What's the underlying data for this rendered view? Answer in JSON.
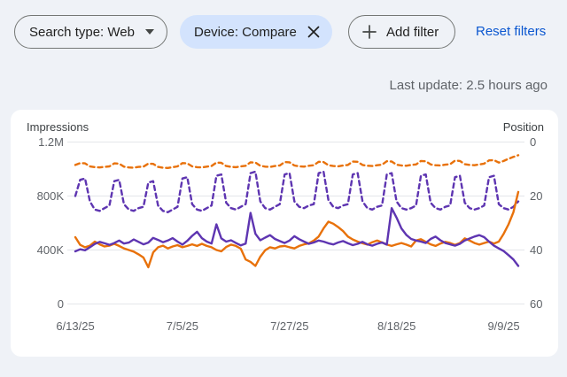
{
  "filter_bar": {
    "search_type": {
      "label": "Search type: Web"
    },
    "device_chip": {
      "label": "Device: Compare"
    },
    "add_filter": {
      "label": "Add filter"
    },
    "reset_filters": {
      "label": "Reset filters"
    }
  },
  "status": {
    "last_update": "Last update: 2.5 hours ago"
  },
  "chart_card": {
    "left_axis_title": "Impressions",
    "right_axis_title": "Position"
  },
  "colors": {
    "purple": "#5e35b1",
    "orange": "#e8710a",
    "gridline": "#e4e6ea",
    "tick_text": "#5f6368",
    "chip_bg": "#d3e3fd",
    "link_blue": "#0b57d0"
  },
  "chart_data": {
    "type": "line",
    "title": "Search performance: Impressions and Position, device comparison",
    "x_ticks": [
      "6/13/25",
      "7/5/25",
      "7/27/25",
      "8/18/25",
      "9/9/25"
    ],
    "x_tick_days": [
      0,
      22,
      44,
      66,
      88
    ],
    "days": 92,
    "left_axis": {
      "label": "Impressions",
      "ticks": [
        "1.2M",
        "800K",
        "400K",
        "0"
      ],
      "range_k": [
        0,
        1200
      ],
      "values_unit": "thousands"
    },
    "right_axis": {
      "label": "Position",
      "ticks": [
        "0",
        "20",
        "40",
        "60"
      ],
      "range": [
        0,
        60
      ],
      "inverted": true
    },
    "grid": true,
    "legend": "none",
    "series": [
      {
        "name": "position-orange-dashed",
        "axis": "right",
        "color": "#e8710a",
        "style": "dashed",
        "values": [
          8.5,
          7.8,
          7.9,
          9,
          9.3,
          9.4,
          9.2,
          9,
          7.9,
          8,
          9.1,
          9.4,
          9.5,
          9.2,
          9.1,
          8,
          8.1,
          9.2,
          9.5,
          9.6,
          9.3,
          9,
          7.8,
          7.9,
          9,
          9.3,
          9.4,
          9.1,
          8.9,
          7.6,
          7.7,
          8.9,
          9.2,
          9.3,
          9,
          8.8,
          7.5,
          7.6,
          8.8,
          9.1,
          9.2,
          8.9,
          8.7,
          7.4,
          7.5,
          8.7,
          9,
          9.1,
          8.8,
          8.6,
          7.3,
          7.4,
          8.6,
          8.9,
          9,
          8.7,
          8.5,
          7.2,
          7.3,
          8.5,
          8.8,
          8.9,
          8.6,
          8.4,
          7.1,
          7.2,
          8.4,
          8.7,
          8.8,
          8.5,
          8.3,
          7,
          7.1,
          8.3,
          8.6,
          8.7,
          8.4,
          8.2,
          6.9,
          7,
          8.2,
          8.5,
          8.6,
          8.3,
          8,
          6.8,
          6.7,
          7.6,
          7,
          6.2,
          5.5,
          4.9
        ]
      },
      {
        "name": "position-purple-dashed",
        "axis": "right",
        "color": "#5e35b1",
        "style": "dashed",
        "values": [
          20,
          14,
          13.5,
          22,
          25,
          25.5,
          24.5,
          23.5,
          14.5,
          14,
          23,
          25,
          25.5,
          24.5,
          24,
          15,
          14.5,
          23.5,
          25.5,
          26,
          25,
          24,
          13.5,
          13,
          23,
          25,
          25.5,
          24.5,
          23.5,
          12.5,
          12,
          22.5,
          24.5,
          25,
          24,
          23,
          11.5,
          11,
          22,
          24.5,
          25,
          24,
          23,
          12,
          11.5,
          22,
          24,
          24.5,
          23.5,
          23,
          11.5,
          11,
          21.5,
          24,
          24.5,
          23.5,
          23,
          12,
          11.5,
          22,
          24.5,
          25,
          24,
          23.5,
          12,
          11.5,
          22,
          24.5,
          25,
          24.5,
          23.5,
          12.5,
          12,
          22.5,
          24.5,
          25,
          24,
          23.5,
          13,
          12.5,
          22.5,
          24.5,
          25,
          24.5,
          23.5,
          13,
          12.5,
          23,
          24.5,
          25,
          24,
          22
        ]
      },
      {
        "name": "impressions-orange-solid",
        "axis": "left",
        "color": "#e8710a",
        "style": "solid",
        "values": [
          495,
          438,
          420,
          432,
          462,
          442,
          426,
          432,
          446,
          430,
          412,
          400,
          388,
          368,
          344,
          272,
          382,
          420,
          432,
          412,
          426,
          436,
          420,
          430,
          442,
          430,
          446,
          430,
          420,
          400,
          390,
          422,
          440,
          430,
          410,
          330,
          312,
          282,
          350,
          398,
          420,
          412,
          426,
          430,
          420,
          412,
          430,
          442,
          450,
          470,
          500,
          560,
          610,
          595,
          570,
          540,
          500,
          478,
          462,
          450,
          440,
          458,
          470,
          456,
          440,
          430,
          442,
          452,
          440,
          426,
          470,
          480,
          460,
          442,
          430,
          448,
          460,
          452,
          438,
          452,
          486,
          470,
          452,
          440,
          452,
          462,
          448,
          462,
          520,
          590,
          680,
          830
        ]
      },
      {
        "name": "impressions-purple-solid",
        "axis": "left",
        "color": "#5e35b1",
        "style": "solid",
        "values": [
          390,
          405,
          398,
          420,
          445,
          460,
          450,
          438,
          452,
          470,
          448,
          455,
          478,
          460,
          442,
          455,
          490,
          475,
          458,
          470,
          488,
          462,
          440,
          468,
          505,
          535,
          488,
          462,
          448,
          590,
          486,
          462,
          472,
          452,
          434,
          448,
          675,
          520,
          472,
          492,
          510,
          482,
          466,
          452,
          470,
          502,
          480,
          462,
          446,
          456,
          470,
          462,
          450,
          441,
          456,
          466,
          450,
          436,
          446,
          460,
          442,
          432,
          446,
          456,
          440,
          710,
          640,
          560,
          512,
          482,
          470,
          462,
          452,
          482,
          500,
          472,
          452,
          442,
          432,
          446,
          470,
          485,
          500,
          510,
          495,
          462,
          432,
          412,
          392,
          362,
          330,
          282
        ]
      }
    ]
  }
}
